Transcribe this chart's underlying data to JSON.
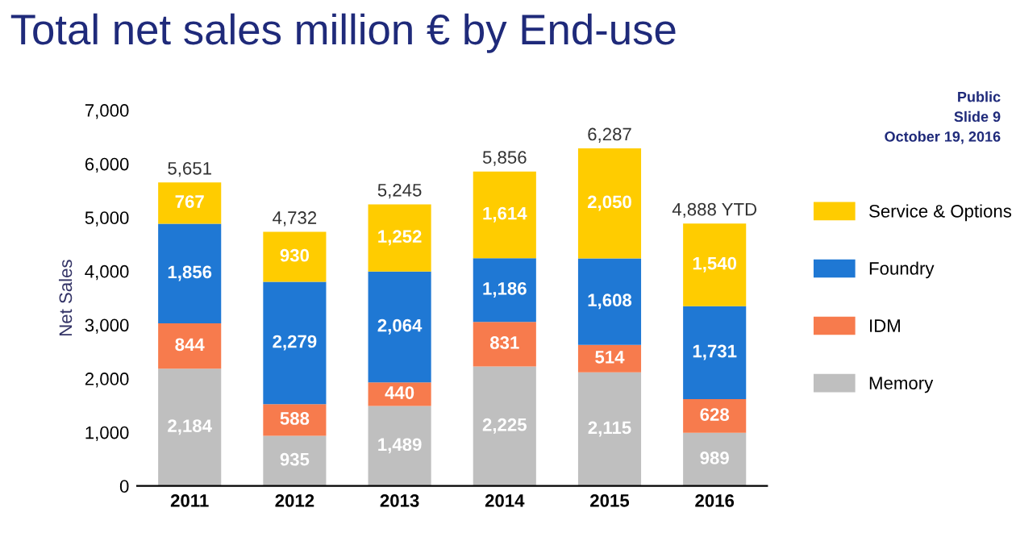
{
  "chart_data": {
    "type": "bar",
    "stacked": true,
    "title": "Total net sales million € by End-use",
    "ylabel": "Net Sales",
    "categories": [
      "2011",
      "2012",
      "2013",
      "2014",
      "2015",
      "2016"
    ],
    "series": [
      {
        "name": "Memory",
        "color": "#bfbfbf",
        "values": [
          2184,
          935,
          1489,
          2225,
          2115,
          989
        ],
        "value_labels": [
          "2,184",
          "935",
          "1,489",
          "2,225",
          "2,115",
          "989"
        ]
      },
      {
        "name": "IDM",
        "color": "#f77b4d",
        "values": [
          844,
          588,
          440,
          831,
          514,
          628
        ],
        "value_labels": [
          "844",
          "588",
          "440",
          "831",
          "514",
          "628"
        ]
      },
      {
        "name": "Foundry",
        "color": "#1f78d4",
        "values": [
          1856,
          2279,
          2064,
          1186,
          1608,
          1731
        ],
        "value_labels": [
          "1,856",
          "2,279",
          "2,064",
          "1,186",
          "1,608",
          "1,731"
        ]
      },
      {
        "name": "Service & Options",
        "color": "#ffcc00",
        "values": [
          767,
          930,
          1252,
          1614,
          2050,
          1540
        ],
        "value_labels": [
          "767",
          "930",
          "1,252",
          "1,614",
          "2,050",
          "1,540"
        ]
      }
    ],
    "totals": [
      "5,651",
      "4,732",
      "5,245",
      "5,856",
      "6,287",
      "4,888 YTD"
    ],
    "ylim": [
      0,
      7000
    ],
    "yticks": [
      0,
      {
        "value": 1000,
        "label": "1,000"
      },
      {
        "value": 2000,
        "label": "2,000"
      },
      {
        "value": 3000,
        "label": "3,000"
      },
      {
        "value": 4000,
        "label": "4,000"
      },
      {
        "value": 5000,
        "label": "5,000"
      },
      {
        "value": 6000,
        "label": "6,000"
      },
      {
        "value": 7000,
        "label": "7,000"
      }
    ],
    "grid": false,
    "legend": "right",
    "annotations": [
      "Public",
      "Slide 9",
      "October 19, 2016"
    ]
  }
}
